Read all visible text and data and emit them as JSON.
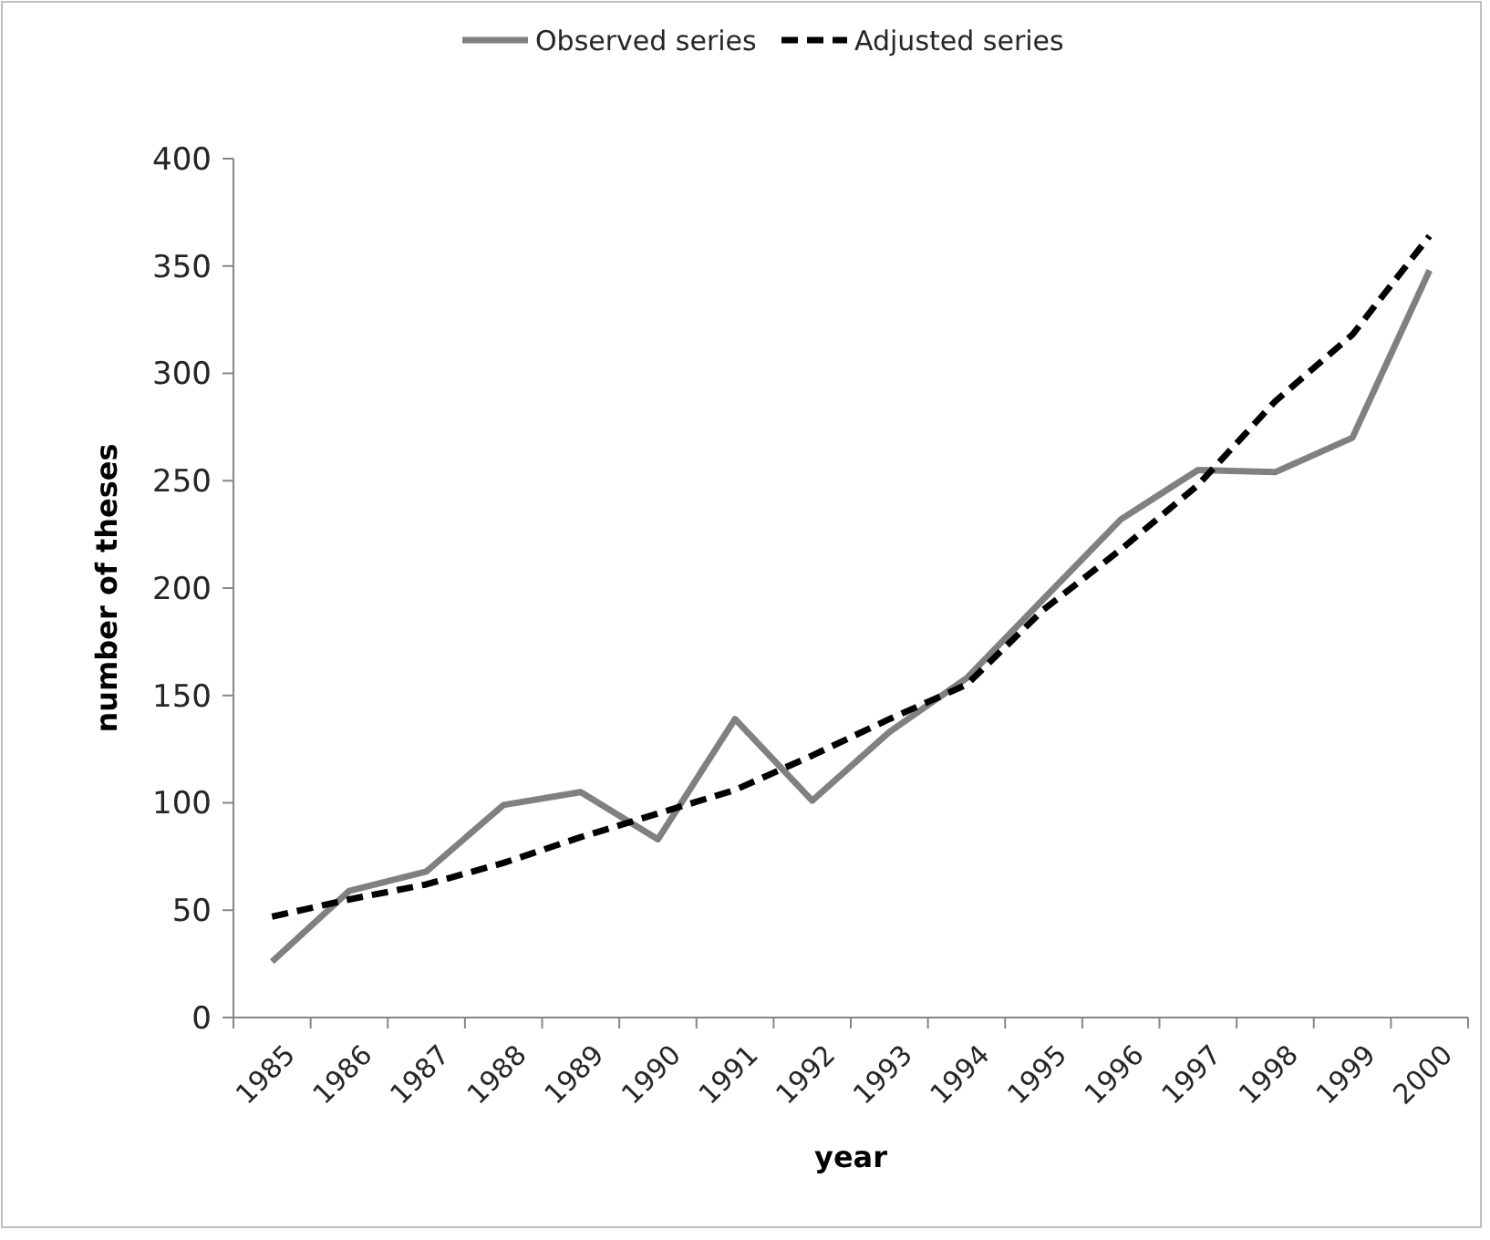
{
  "chart_data": {
    "type": "line",
    "xlabel": "year",
    "ylabel": "number of theses",
    "categories": [
      "1985",
      "1986",
      "1987",
      "1988",
      "1989",
      "1990",
      "1991",
      "1992",
      "1993",
      "1994",
      "1995",
      "1996",
      "1997",
      "1998",
      "1999",
      "2000"
    ],
    "series": [
      {
        "name": "Observed series",
        "color": "#808080",
        "line_style": "solid",
        "values": [
          26,
          59,
          68,
          99,
          105,
          83,
          139,
          101,
          133,
          158,
          195,
          232,
          255,
          254,
          270,
          348
        ]
      },
      {
        "name": "Adjusted series",
        "color": "#000000",
        "line_style": "dashed",
        "values": [
          47,
          55,
          62,
          72,
          84,
          95,
          106,
          122,
          139,
          155,
          190,
          218,
          248,
          287,
          318,
          364
        ]
      }
    ],
    "ylim": [
      0,
      400
    ],
    "yticks": [
      0,
      50,
      100,
      150,
      200,
      250,
      300,
      350,
      400
    ],
    "grid": false,
    "legend": "top",
    "marker": "none"
  }
}
